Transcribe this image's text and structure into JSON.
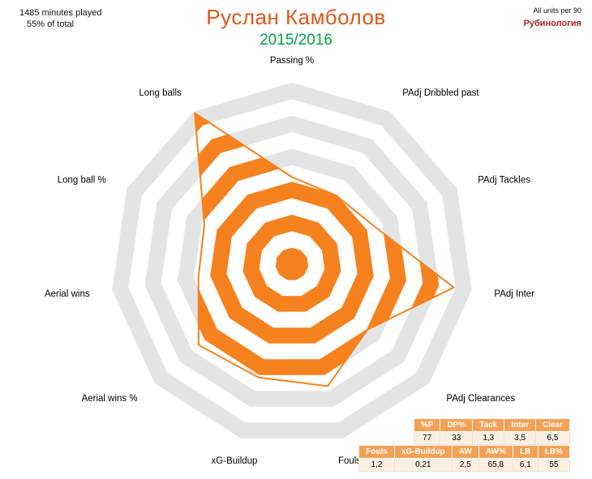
{
  "meta": {
    "minutes_played": "1485  minutes played",
    "percent_of_total": "55% of total",
    "units_note": "All units per 90",
    "brand": "Рубинология"
  },
  "title": "Руслан Камболов",
  "season": "2015/2016",
  "colors": {
    "accent_orange": "#F6821F",
    "title_orange": "#E0571A",
    "season_green": "#00A24D",
    "brand_red": "#A6251F",
    "ring_gray": "#E4E4E4",
    "ring_white": "#FFFFFF",
    "table_header_bg": "#F3A155",
    "table_header_text": "#FFFFFF",
    "table_row_bg": "#FCEFE1"
  },
  "chart_data": {
    "type": "radar",
    "title": "Руслан Камболов",
    "subtitle": "2015/2016",
    "axes": [
      "Passing %",
      "PAdj Dribbled past",
      "PAdj Tackles",
      "PAdj Inter",
      "PAdj Clearances",
      "Fouls",
      "xG-Buildup",
      "Aerial wins %",
      "Aerial wins",
      "Long ball %",
      "Long balls"
    ],
    "values_percentile": [
      48,
      45,
      50,
      90,
      55,
      70,
      65,
      68,
      52,
      53,
      99
    ],
    "max": 100,
    "rings": 11,
    "layout": "axes start at top, clockwise; alternating gray/white concentric rings; player area filled with alternating orange/white rings"
  },
  "tables": [
    {
      "headers": [
        "%P",
        "DP%",
        "Tack",
        "Inter",
        "Clear"
      ],
      "values": [
        "77",
        "33",
        "1,3",
        "3,5",
        "6,5"
      ]
    },
    {
      "headers": [
        "Fouls",
        "xG-Buildup",
        "AW",
        "AW%",
        "LB",
        "LB%"
      ],
      "values": [
        "1,2",
        "0,21",
        "2,5",
        "65,8",
        "6,1",
        "55"
      ]
    }
  ]
}
